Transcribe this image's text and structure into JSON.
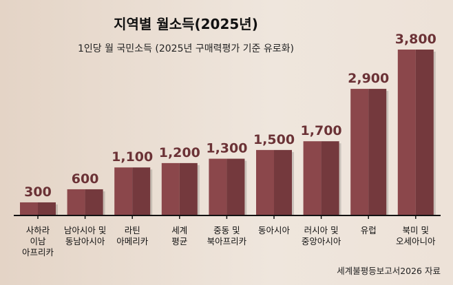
{
  "chart_data": {
    "type": "bar",
    "title": "지역별 월소득(2025년)",
    "subtitle": "1인당 월 국민소득 (2025년 구매력평가 기준 유로화)",
    "categories": [
      [
        "사하라",
        "이남",
        "아프리카"
      ],
      [
        "남아시아 및",
        "동남아시아"
      ],
      [
        "라틴",
        "아메리카"
      ],
      [
        "세계",
        "평균"
      ],
      [
        "중동 및",
        "북아프리카"
      ],
      [
        "동아시아"
      ],
      [
        "러시아 및",
        "중앙아시아"
      ],
      [
        "유럽"
      ],
      [
        "북미 및",
        "오세아니아"
      ]
    ],
    "values": [
      300,
      600,
      1100,
      1200,
      1300,
      1500,
      1700,
      2900,
      3800
    ],
    "value_labels": [
      "300",
      "600",
      "1,100",
      "1,200",
      "1,300",
      "1,500",
      "1,700",
      "2,900",
      "3,800"
    ],
    "ylim": [
      0,
      3800
    ],
    "xlabel": "",
    "ylabel": "",
    "grid": false,
    "source": "세계불평등보고서2026 자료",
    "colors": {
      "bar_light": "#8b474b",
      "bar_dark": "#74393d",
      "label": "#6b3236"
    }
  }
}
